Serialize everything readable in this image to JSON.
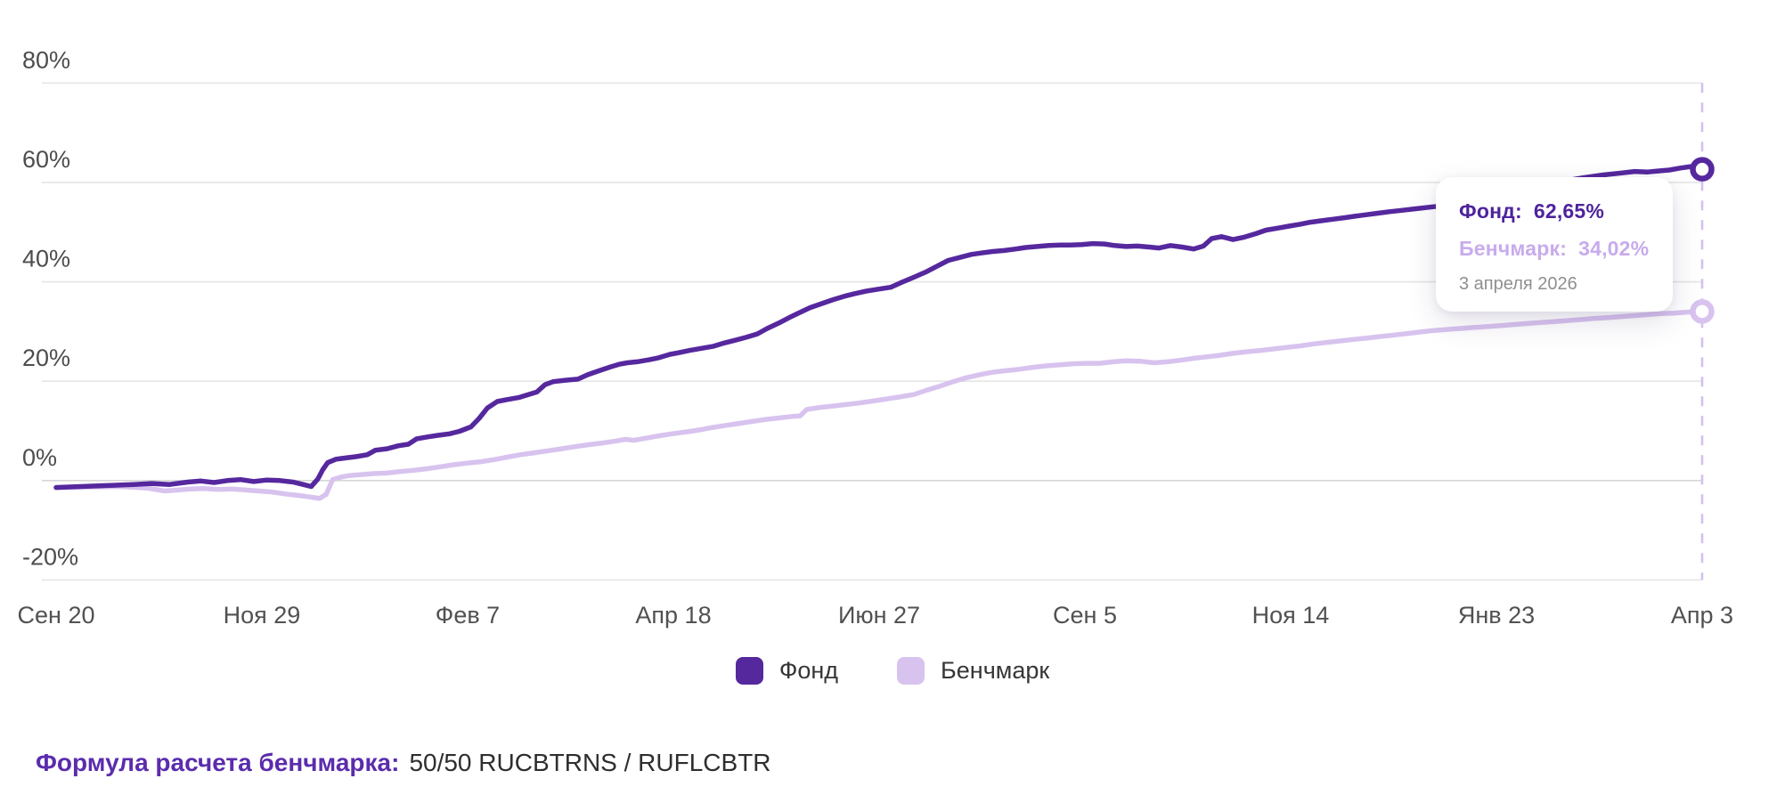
{
  "chart_data": {
    "type": "line",
    "title": "",
    "xlabel": "",
    "ylabel": "",
    "ylim": [
      -20,
      80
    ],
    "grid": "horizontal",
    "legend_position": "bottom",
    "x_tick_labels": [
      "Сен 20",
      "Ноя 29",
      "Фев 7",
      "Апр 18",
      "Июн 27",
      "Сен 5",
      "Ноя 14",
      "Янв 23",
      "Апр 3"
    ],
    "y_ticks": [
      {
        "label": "80%",
        "value": 80
      },
      {
        "label": "60%",
        "value": 60
      },
      {
        "label": "40%",
        "value": 40
      },
      {
        "label": "20%",
        "value": 20
      },
      {
        "label": "0%",
        "value": 0
      },
      {
        "label": "-20%",
        "value": -20
      }
    ],
    "crosshair": {
      "x_fraction": 1.0,
      "style": "dashed",
      "color": "#d6bfee"
    },
    "series": [
      {
        "name": "Фонд",
        "color": "#56289e",
        "final_value": 62.65,
        "final_value_label": "62,65%",
        "points": [
          [
            0,
            -1.4
          ],
          [
            0.015,
            -1.2
          ],
          [
            0.031,
            -1
          ],
          [
            0.047,
            -0.8
          ],
          [
            0.058,
            -0.6
          ],
          [
            0.069,
            -0.8
          ],
          [
            0.08,
            -0.3
          ],
          [
            0.088,
            -0.1
          ],
          [
            0.096,
            -0.4
          ],
          [
            0.104,
            0
          ],
          [
            0.112,
            0.2
          ],
          [
            0.12,
            -0.2
          ],
          [
            0.128,
            0.1
          ],
          [
            0.136,
            0
          ],
          [
            0.144,
            -0.3
          ],
          [
            0.15,
            -0.8
          ],
          [
            0.155,
            -1.2
          ],
          [
            0.159,
            0.3
          ],
          [
            0.162,
            2.2
          ],
          [
            0.165,
            3.6
          ],
          [
            0.17,
            4.3
          ],
          [
            0.177,
            4.6
          ],
          [
            0.182,
            4.8
          ],
          [
            0.189,
            5.2
          ],
          [
            0.194,
            6.1
          ],
          [
            0.201,
            6.4
          ],
          [
            0.208,
            7
          ],
          [
            0.214,
            7.3
          ],
          [
            0.219,
            8.4
          ],
          [
            0.226,
            8.8
          ],
          [
            0.232,
            9.1
          ],
          [
            0.239,
            9.4
          ],
          [
            0.245,
            9.9
          ],
          [
            0.252,
            10.8
          ],
          [
            0.257,
            12.5
          ],
          [
            0.262,
            14.6
          ],
          [
            0.268,
            15.9
          ],
          [
            0.274,
            16.3
          ],
          [
            0.281,
            16.7
          ],
          [
            0.286,
            17.2
          ],
          [
            0.292,
            17.8
          ],
          [
            0.297,
            19.3
          ],
          [
            0.302,
            19.9
          ],
          [
            0.31,
            20.2
          ],
          [
            0.317,
            20.4
          ],
          [
            0.323,
            21.3
          ],
          [
            0.33,
            22.1
          ],
          [
            0.337,
            22.9
          ],
          [
            0.342,
            23.4
          ],
          [
            0.347,
            23.7
          ],
          [
            0.353,
            23.9
          ],
          [
            0.36,
            24.3
          ],
          [
            0.366,
            24.7
          ],
          [
            0.373,
            25.4
          ],
          [
            0.378,
            25.7
          ],
          [
            0.385,
            26.2
          ],
          [
            0.392,
            26.6
          ],
          [
            0.399,
            27
          ],
          [
            0.405,
            27.6
          ],
          [
            0.412,
            28.2
          ],
          [
            0.419,
            28.8
          ],
          [
            0.426,
            29.5
          ],
          [
            0.432,
            30.6
          ],
          [
            0.439,
            31.7
          ],
          [
            0.446,
            32.9
          ],
          [
            0.453,
            34
          ],
          [
            0.458,
            34.8
          ],
          [
            0.465,
            35.6
          ],
          [
            0.472,
            36.4
          ],
          [
            0.479,
            37.1
          ],
          [
            0.485,
            37.6
          ],
          [
            0.492,
            38.1
          ],
          [
            0.499,
            38.5
          ],
          [
            0.507,
            38.9
          ],
          [
            0.513,
            39.8
          ],
          [
            0.521,
            40.9
          ],
          [
            0.528,
            41.9
          ],
          [
            0.535,
            43.1
          ],
          [
            0.542,
            44.3
          ],
          [
            0.549,
            44.9
          ],
          [
            0.556,
            45.5
          ],
          [
            0.562,
            45.8
          ],
          [
            0.569,
            46.1
          ],
          [
            0.576,
            46.3
          ],
          [
            0.583,
            46.6
          ],
          [
            0.589,
            46.9
          ],
          [
            0.596,
            47.1
          ],
          [
            0.603,
            47.3
          ],
          [
            0.61,
            47.4
          ],
          [
            0.616,
            47.4
          ],
          [
            0.623,
            47.5
          ],
          [
            0.63,
            47.7
          ],
          [
            0.637,
            47.6
          ],
          [
            0.643,
            47.3
          ],
          [
            0.65,
            47.1
          ],
          [
            0.657,
            47.2
          ],
          [
            0.664,
            47
          ],
          [
            0.67,
            46.8
          ],
          [
            0.677,
            47.3
          ],
          [
            0.684,
            47
          ],
          [
            0.691,
            46.6
          ],
          [
            0.697,
            47.2
          ],
          [
            0.702,
            48.7
          ],
          [
            0.708,
            49.1
          ],
          [
            0.715,
            48.5
          ],
          [
            0.722,
            49
          ],
          [
            0.729,
            49.7
          ],
          [
            0.735,
            50.4
          ],
          [
            0.742,
            50.8
          ],
          [
            0.749,
            51.2
          ],
          [
            0.756,
            51.6
          ],
          [
            0.762,
            52
          ],
          [
            0.769,
            52.3
          ],
          [
            0.776,
            52.6
          ],
          [
            0.783,
            52.9
          ],
          [
            0.789,
            53.2
          ],
          [
            0.796,
            53.5
          ],
          [
            0.803,
            53.8
          ],
          [
            0.81,
            54.1
          ],
          [
            0.818,
            54.4
          ],
          [
            0.826,
            54.7
          ],
          [
            0.834,
            55
          ],
          [
            0.842,
            55.3
          ],
          [
            0.853,
            55.9
          ],
          [
            0.864,
            56.6
          ],
          [
            0.875,
            57.4
          ],
          [
            0.886,
            58.3
          ],
          [
            0.897,
            59.1
          ],
          [
            0.907,
            59.8
          ],
          [
            0.918,
            60.4
          ],
          [
            0.929,
            61
          ],
          [
            0.94,
            61.5
          ],
          [
            0.951,
            61.9
          ],
          [
            0.959,
            62.2
          ],
          [
            0.967,
            62.1
          ],
          [
            0.973,
            62.3
          ],
          [
            0.98,
            62.5
          ],
          [
            0.987,
            62.9
          ],
          [
            0.993,
            63.2
          ],
          [
            1,
            62.65
          ]
        ]
      },
      {
        "name": "Бенчмарк",
        "color": "#d8c3ef",
        "final_value": 34.02,
        "final_value_label": "34,02%",
        "points": [
          [
            0,
            -1.4
          ],
          [
            0.02,
            -1.3
          ],
          [
            0.039,
            -1.2
          ],
          [
            0.055,
            -1.5
          ],
          [
            0.066,
            -2.1
          ],
          [
            0.074,
            -1.9
          ],
          [
            0.082,
            -1.7
          ],
          [
            0.09,
            -1.6
          ],
          [
            0.098,
            -1.8
          ],
          [
            0.107,
            -1.7
          ],
          [
            0.115,
            -1.9
          ],
          [
            0.123,
            -2.1
          ],
          [
            0.131,
            -2.3
          ],
          [
            0.139,
            -2.7
          ],
          [
            0.147,
            -3
          ],
          [
            0.154,
            -3.3
          ],
          [
            0.16,
            -3.6
          ],
          [
            0.164,
            -2.8
          ],
          [
            0.168,
            0.2
          ],
          [
            0.173,
            0.7
          ],
          [
            0.178,
            1
          ],
          [
            0.185,
            1.2
          ],
          [
            0.193,
            1.4
          ],
          [
            0.201,
            1.5
          ],
          [
            0.209,
            1.8
          ],
          [
            0.218,
            2.1
          ],
          [
            0.226,
            2.4
          ],
          [
            0.234,
            2.8
          ],
          [
            0.242,
            3.2
          ],
          [
            0.25,
            3.5
          ],
          [
            0.258,
            3.8
          ],
          [
            0.266,
            4.2
          ],
          [
            0.274,
            4.7
          ],
          [
            0.282,
            5.2
          ],
          [
            0.291,
            5.6
          ],
          [
            0.299,
            6
          ],
          [
            0.307,
            6.4
          ],
          [
            0.315,
            6.8
          ],
          [
            0.323,
            7.2
          ],
          [
            0.331,
            7.5
          ],
          [
            0.339,
            7.9
          ],
          [
            0.346,
            8.3
          ],
          [
            0.351,
            8.1
          ],
          [
            0.358,
            8.5
          ],
          [
            0.366,
            9
          ],
          [
            0.374,
            9.4
          ],
          [
            0.383,
            9.8
          ],
          [
            0.391,
            10.2
          ],
          [
            0.399,
            10.7
          ],
          [
            0.407,
            11.1
          ],
          [
            0.415,
            11.5
          ],
          [
            0.423,
            11.9
          ],
          [
            0.431,
            12.3
          ],
          [
            0.439,
            12.6
          ],
          [
            0.447,
            12.9
          ],
          [
            0.452,
            13
          ],
          [
            0.456,
            14.3
          ],
          [
            0.464,
            14.7
          ],
          [
            0.472,
            15
          ],
          [
            0.48,
            15.3
          ],
          [
            0.488,
            15.6
          ],
          [
            0.496,
            16
          ],
          [
            0.504,
            16.4
          ],
          [
            0.512,
            16.8
          ],
          [
            0.521,
            17.3
          ],
          [
            0.529,
            18.2
          ],
          [
            0.537,
            19
          ],
          [
            0.545,
            19.9
          ],
          [
            0.553,
            20.7
          ],
          [
            0.561,
            21.3
          ],
          [
            0.569,
            21.8
          ],
          [
            0.577,
            22.1
          ],
          [
            0.585,
            22.4
          ],
          [
            0.594,
            22.8
          ],
          [
            0.602,
            23.1
          ],
          [
            0.61,
            23.3
          ],
          [
            0.618,
            23.5
          ],
          [
            0.626,
            23.6
          ],
          [
            0.634,
            23.6
          ],
          [
            0.642,
            23.9
          ],
          [
            0.65,
            24.1
          ],
          [
            0.659,
            24
          ],
          [
            0.667,
            23.7
          ],
          [
            0.675,
            23.9
          ],
          [
            0.683,
            24.2
          ],
          [
            0.691,
            24.6
          ],
          [
            0.699,
            24.9
          ],
          [
            0.707,
            25.2
          ],
          [
            0.715,
            25.6
          ],
          [
            0.723,
            25.9
          ],
          [
            0.732,
            26.2
          ],
          [
            0.74,
            26.5
          ],
          [
            0.748,
            26.8
          ],
          [
            0.756,
            27.1
          ],
          [
            0.764,
            27.5
          ],
          [
            0.772,
            27.8
          ],
          [
            0.78,
            28.1
          ],
          [
            0.788,
            28.4
          ],
          [
            0.797,
            28.7
          ],
          [
            0.805,
            29
          ],
          [
            0.813,
            29.3
          ],
          [
            0.821,
            29.6
          ],
          [
            0.829,
            29.9
          ],
          [
            0.837,
            30.2
          ],
          [
            0.845,
            30.4
          ],
          [
            0.853,
            30.6
          ],
          [
            0.861,
            30.8
          ],
          [
            0.87,
            31
          ],
          [
            0.878,
            31.2
          ],
          [
            0.886,
            31.4
          ],
          [
            0.894,
            31.6
          ],
          [
            0.902,
            31.8
          ],
          [
            0.91,
            32
          ],
          [
            0.918,
            32.2
          ],
          [
            0.926,
            32.4
          ],
          [
            0.934,
            32.6
          ],
          [
            0.943,
            32.8
          ],
          [
            0.951,
            33
          ],
          [
            0.959,
            33.2
          ],
          [
            0.967,
            33.4
          ],
          [
            0.975,
            33.6
          ],
          [
            0.983,
            33.7
          ],
          [
            0.991,
            33.9
          ],
          [
            1,
            34.02
          ]
        ]
      }
    ]
  },
  "tooltip": {
    "rows": [
      {
        "label": "Фонд:",
        "value": "62,65%",
        "color": "#4f239c"
      },
      {
        "label": "Бенчмарк:",
        "value": "34,02%",
        "color": "#c8abec"
      }
    ],
    "date": "3 апреля 2026"
  },
  "legend": {
    "items": [
      {
        "label": "Фонд",
        "color": "#56289e"
      },
      {
        "label": "Бенчмарк",
        "color": "#d8c3ef"
      }
    ]
  },
  "footer": {
    "formula_label": "Формула расчета бенчмарка:",
    "formula_value": "50/50 RUCBTRNS / RUFLCBTR"
  },
  "colors": {
    "background": "#ffffff",
    "gridline": "#e5e5e5",
    "axis_text": "#4d4d4d",
    "formula_accent": "#5b2cad",
    "tooltip_date": "#8f8f8f"
  }
}
